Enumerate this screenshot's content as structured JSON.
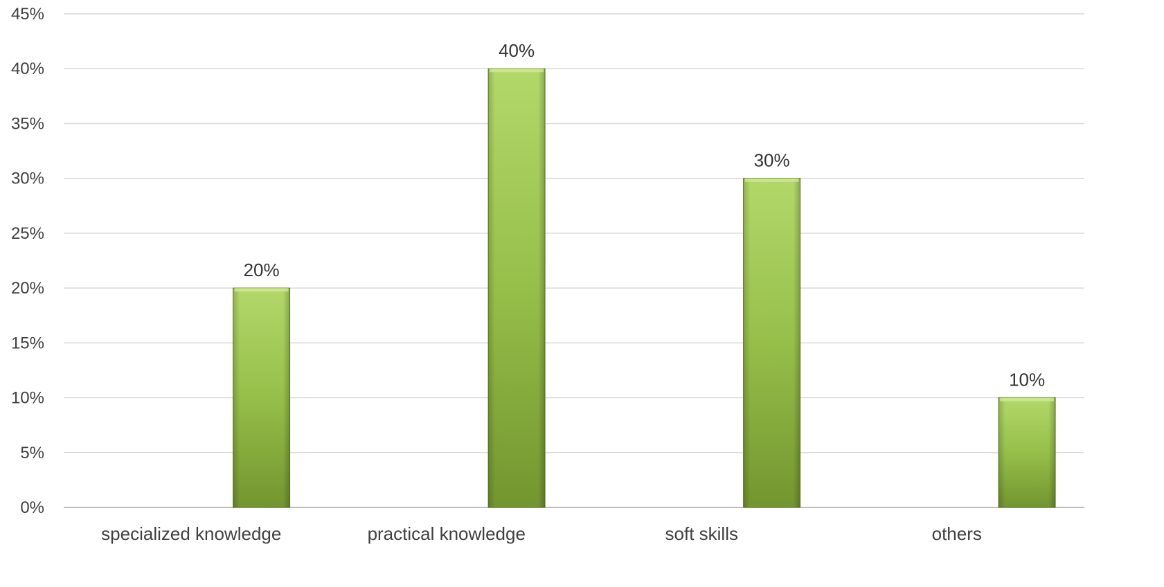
{
  "chart_data": {
    "type": "bar",
    "categories": [
      "specialized knowledge",
      "practical knowledge",
      "soft skills",
      "others"
    ],
    "series": [
      {
        "values": [
          20,
          40,
          30,
          10
        ]
      }
    ],
    "data_labels": [
      "20%",
      "40%",
      "30%",
      "10%"
    ],
    "y_ticks": [
      "0%",
      "5%",
      "10%",
      "15%",
      "20%",
      "25%",
      "30%",
      "35%",
      "40%",
      "45%"
    ],
    "ylim": [
      0,
      45
    ],
    "y_unit": "%",
    "grid": true,
    "legend": "none",
    "title": "",
    "xlabel": "",
    "ylabel": ""
  },
  "colors": {
    "bar_top": "#b2d86a",
    "bar_mid": "#96bf4a",
    "bar_bottom": "#73952f",
    "bar_edge": "#5f7d26",
    "gridline": "#d9d9d9",
    "text": "#404040"
  }
}
